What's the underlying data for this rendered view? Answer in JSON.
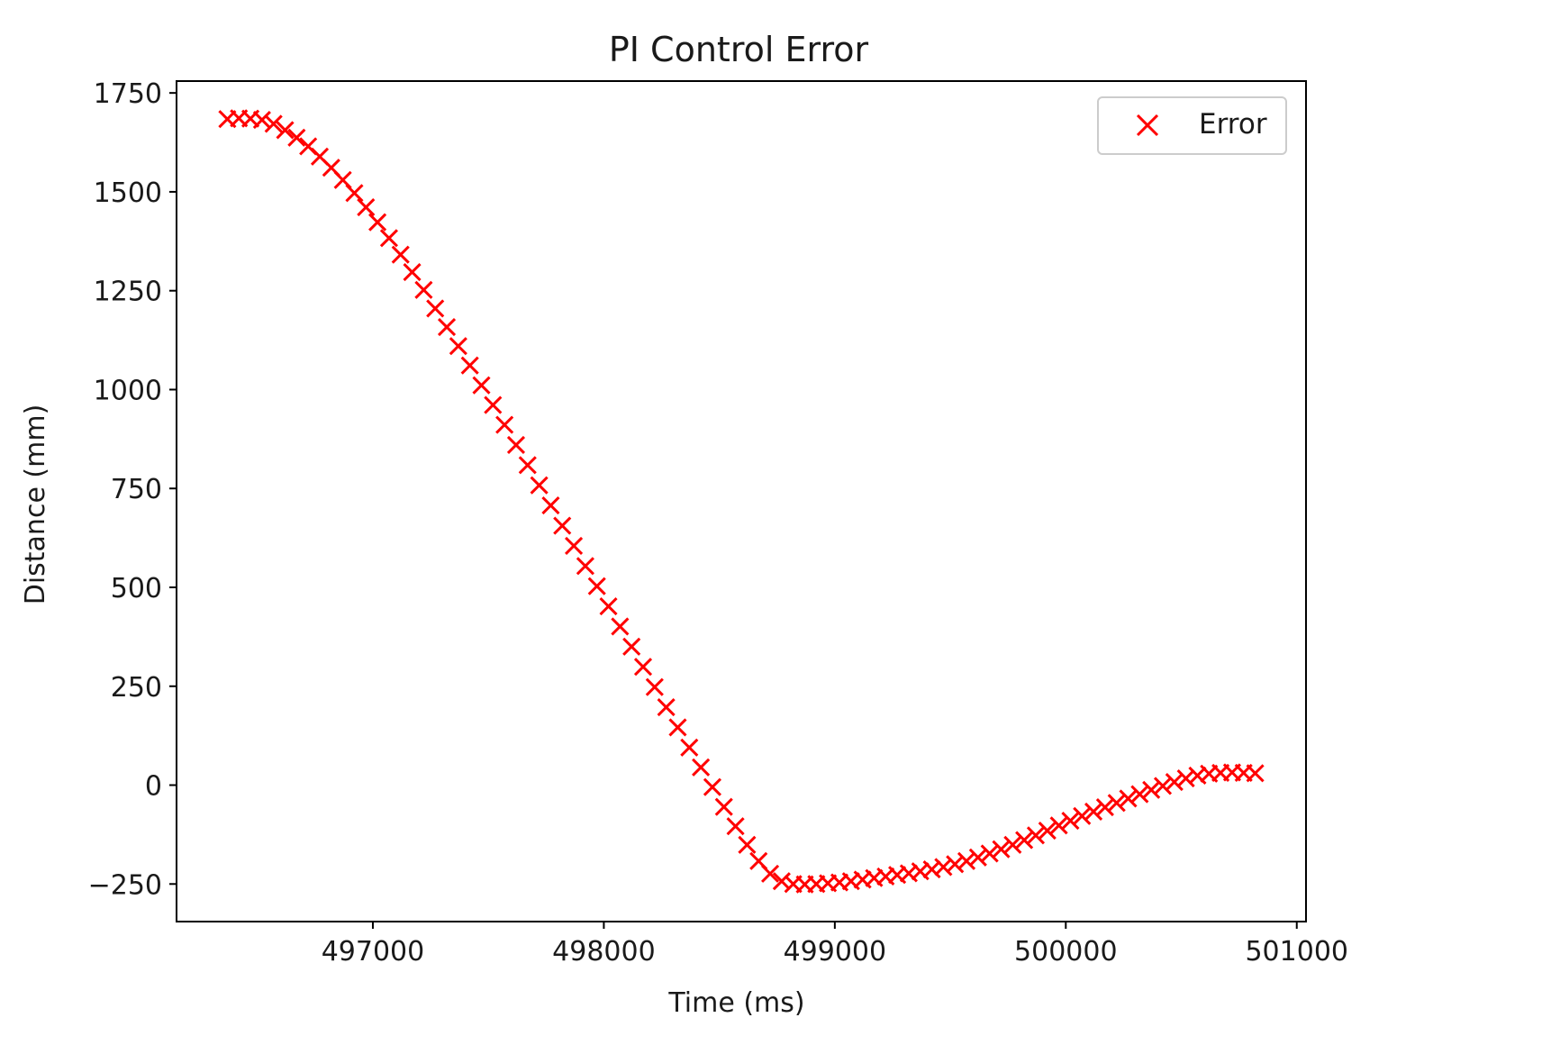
{
  "chart_data": {
    "type": "scatter",
    "title": "PI Control Error",
    "xlabel": "Time (ms)",
    "ylabel": "Distance (mm)",
    "xlim": [
      496150,
      501040
    ],
    "ylim": [
      -345,
      1780
    ],
    "xticks": [
      497000,
      498000,
      499000,
      500000,
      501000
    ],
    "xtick_labels": [
      "497000",
      "498000",
      "499000",
      "500000",
      "501000"
    ],
    "yticks": [
      -250,
      0,
      250,
      500,
      750,
      1000,
      1250,
      1500,
      1750
    ],
    "ytick_labels": [
      "−250",
      "0",
      "250",
      "500",
      "750",
      "1000",
      "1250",
      "1500",
      "1750"
    ],
    "grid": false,
    "legend_position": "upper right",
    "marker": "x",
    "colors": {
      "series": "#ff0000",
      "axes": "#000000",
      "legend_border": "#cccccc"
    },
    "series": [
      {
        "name": "Error",
        "x": [
          496370,
          496420,
          496470,
          496520,
          496570,
          496620,
          496670,
          496720,
          496770,
          496820,
          496870,
          496920,
          496970,
          497020,
          497070,
          497120,
          497170,
          497220,
          497270,
          497320,
          497370,
          497420,
          497470,
          497520,
          497570,
          497620,
          497670,
          497720,
          497770,
          497820,
          497870,
          497920,
          497970,
          498020,
          498070,
          498120,
          498170,
          498220,
          498270,
          498320,
          498370,
          498420,
          498470,
          498520,
          498570,
          498620,
          498670,
          498720,
          498770,
          498820,
          498870,
          498920,
          498970,
          499020,
          499070,
          499120,
          499170,
          499220,
          499270,
          499320,
          499370,
          499420,
          499470,
          499520,
          499570,
          499620,
          499670,
          499720,
          499770,
          499820,
          499870,
          499920,
          499970,
          500020,
          500070,
          500120,
          500170,
          500220,
          500270,
          500320,
          500370,
          500420,
          500470,
          500520,
          500570,
          500620,
          500670,
          500720,
          500770,
          500820
        ],
        "y": [
          1684,
          1686,
          1685,
          1682,
          1672,
          1656,
          1637,
          1615,
          1589,
          1561,
          1530,
          1497,
          1461,
          1423,
          1383,
          1341,
          1297,
          1252,
          1205,
          1158,
          1110,
          1061,
          1011,
          961,
          911,
          860,
          809,
          758,
          707,
          656,
          605,
          554,
          503,
          452,
          401,
          350,
          299,
          248,
          197,
          146,
          95,
          45,
          -5,
          -55,
          -104,
          -151,
          -192,
          -224,
          -243,
          -250,
          -251,
          -250,
          -248,
          -246,
          -243,
          -239,
          -235,
          -231,
          -227,
          -223,
          -218,
          -213,
          -207,
          -200,
          -192,
          -183,
          -173,
          -162,
          -151,
          -139,
          -127,
          -115,
          -102,
          -90,
          -78,
          -67,
          -56,
          -45,
          -34,
          -23,
          -12,
          -2,
          8,
          17,
          24,
          29,
          31,
          32,
          31,
          30
        ]
      }
    ]
  }
}
